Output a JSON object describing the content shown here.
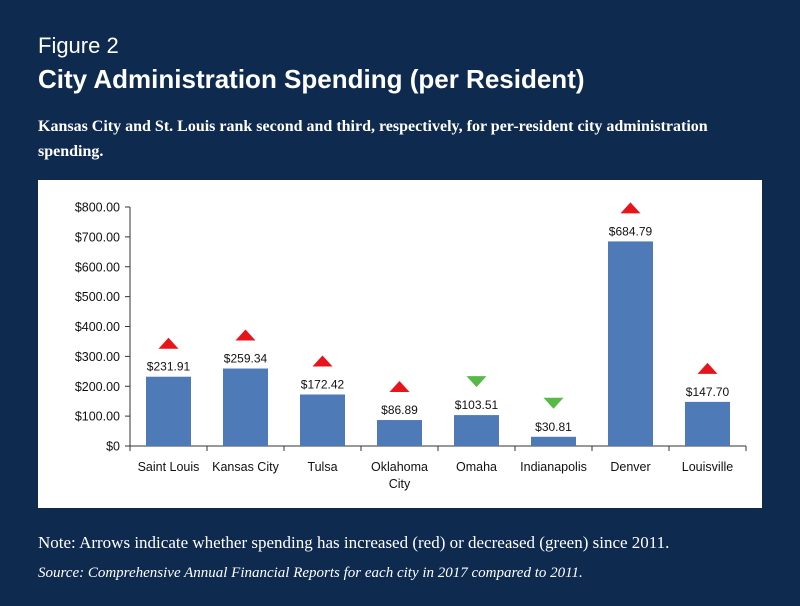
{
  "figure_label": "Figure 2",
  "title": "City Administration Spending (per Resident)",
  "subtitle": "Kansas City and St. Louis rank second and third, respectively, for per-resident city administration spending.",
  "note": "Note: Arrows indicate whether spending has increased (red) or decreased (green) since 2011.",
  "source": "Source: Comprehensive Annual Financial Reports for each city in 2017 compared to 2011.",
  "colors": {
    "bar": "#4f7ab8",
    "up": "#e8141b",
    "down": "#58b947",
    "background": "#0e2a4f"
  },
  "chart_data": {
    "type": "bar",
    "categories": [
      "Saint Louis",
      "Kansas City",
      "Tulsa",
      "Oklahoma City",
      "Omaha",
      "Indianapolis",
      "Denver",
      "Louisville"
    ],
    "category_lines": [
      [
        "Saint Louis"
      ],
      [
        "Kansas City"
      ],
      [
        "Tulsa"
      ],
      [
        "Oklahoma",
        "City"
      ],
      [
        "Omaha"
      ],
      [
        "Indianapolis"
      ],
      [
        "Denver"
      ],
      [
        "Louisville"
      ]
    ],
    "values": [
      231.91,
      259.34,
      172.42,
      86.89,
      103.51,
      30.81,
      684.79,
      147.7
    ],
    "value_labels": [
      "$231.91",
      "$259.34",
      "$172.42",
      "$86.89",
      "$103.51",
      "$30.81",
      "$684.79",
      "$147.70"
    ],
    "change_since_2011": [
      "increase",
      "increase",
      "increase",
      "increase",
      "decrease",
      "decrease",
      "increase",
      "increase"
    ],
    "ylim": [
      0,
      800
    ],
    "yticks": [
      0,
      100,
      200,
      300,
      400,
      500,
      600,
      700,
      800
    ],
    "ytick_labels": [
      "$0",
      "$100.00",
      "$200.00",
      "$300.00",
      "$400.00",
      "$500.00",
      "$600.00",
      "$700.00",
      "$800.00"
    ],
    "grid": false,
    "legend": "none"
  }
}
